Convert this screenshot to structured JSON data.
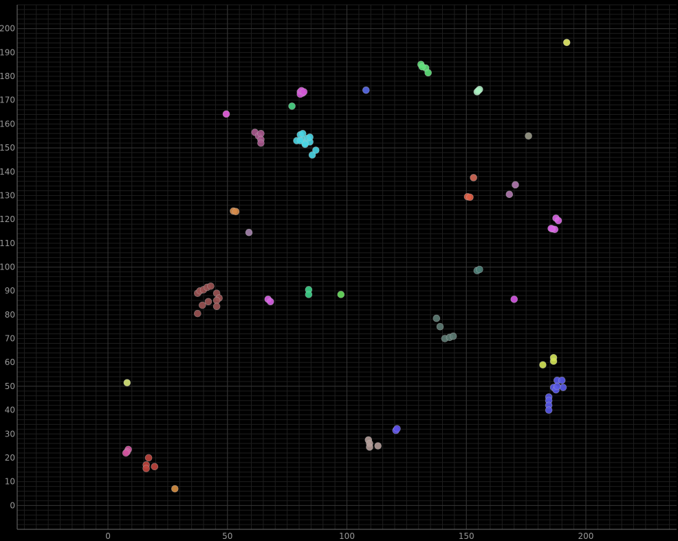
{
  "chart_data": {
    "type": "scatter",
    "title": "",
    "xlabel": "",
    "ylabel": "",
    "xlim": [
      -38,
      238
    ],
    "ylim": [
      -10,
      210
    ],
    "x_ticks": [
      0,
      50,
      100,
      150,
      200
    ],
    "y_ticks": [
      0,
      10,
      20,
      30,
      40,
      50,
      60,
      70,
      80,
      90,
      100,
      110,
      120,
      130,
      140,
      150,
      160,
      170,
      180,
      190,
      200
    ],
    "grid": true,
    "legend": "none",
    "colors": {
      "background": "#000000",
      "major_grid": "#353535",
      "minor_grid": "#1e1e1e",
      "axis": "#707070",
      "tick_text": "#9a9a9a"
    },
    "clusters": [
      {
        "color": "#e4ec6a",
        "points": [
          [
            192,
            194.2
          ]
        ]
      },
      {
        "color": "#5fe07a",
        "points": [
          [
            131,
            185
          ],
          [
            133,
            183.5
          ],
          [
            134,
            181.5
          ],
          [
            131.5,
            184
          ]
        ]
      },
      {
        "color": "#a8f0c0",
        "points": [
          [
            154.5,
            173.5
          ],
          [
            155.5,
            174.5
          ],
          [
            155,
            174
          ]
        ]
      },
      {
        "color": "#5a6aea",
        "points": [
          [
            108,
            174.2
          ]
        ]
      },
      {
        "color": "#d156d6",
        "points": [
          [
            80.5,
            173.5
          ],
          [
            81.5,
            173
          ],
          [
            80.5,
            172.5
          ],
          [
            81,
            174
          ],
          [
            82,
            173.5
          ]
        ]
      },
      {
        "color": "#4ed88a",
        "points": [
          [
            77,
            167.5
          ]
        ]
      },
      {
        "color": "#e860e0",
        "points": [
          [
            49.5,
            164.2
          ]
        ]
      },
      {
        "color": "#a85a8e",
        "points": [
          [
            61.5,
            156.5
          ],
          [
            63,
            155
          ],
          [
            64,
            156
          ],
          [
            64,
            153.5
          ],
          [
            64,
            152
          ]
        ]
      },
      {
        "color": "#4ad6e4",
        "points": [
          [
            79,
            153
          ],
          [
            80.5,
            155.5
          ],
          [
            81.5,
            153.5
          ],
          [
            81.5,
            156
          ],
          [
            82.5,
            152
          ],
          [
            83.5,
            154
          ],
          [
            84.5,
            152.5
          ],
          [
            84.5,
            154.5
          ],
          [
            87,
            149
          ],
          [
            85.5,
            147
          ],
          [
            82.5,
            151.5
          ],
          [
            80.5,
            153
          ]
        ]
      },
      {
        "color": "#9a9a88",
        "points": [
          [
            176,
            155
          ]
        ]
      },
      {
        "color": "#d46a58",
        "points": [
          [
            153,
            137.5
          ]
        ]
      },
      {
        "color": "#b27ab0",
        "points": [
          [
            170.5,
            134.5
          ],
          [
            168,
            130.5
          ]
        ]
      },
      {
        "color": "#e06048",
        "points": [
          [
            150.5,
            129.5
          ],
          [
            151.5,
            129.3
          ]
        ]
      },
      {
        "color": "#d88c4a",
        "points": [
          [
            52.5,
            123.5
          ],
          [
            53.5,
            123.3
          ]
        ]
      },
      {
        "color": "#d964e4",
        "points": [
          [
            187.5,
            120.5
          ],
          [
            188.5,
            119.5
          ],
          [
            186,
            116
          ],
          [
            187,
            115.8
          ],
          [
            185.5,
            116.2
          ]
        ]
      },
      {
        "color": "#a684ae",
        "points": [
          [
            59,
            114.5
          ]
        ]
      },
      {
        "color": "#4e8078",
        "points": [
          [
            154.5,
            98.5
          ],
          [
            155.5,
            99
          ]
        ]
      },
      {
        "color": "#9c5454",
        "points": [
          [
            37.5,
            89
          ],
          [
            38.5,
            90
          ],
          [
            40,
            90.5
          ],
          [
            41.5,
            91.5
          ],
          [
            43,
            92
          ],
          [
            45.5,
            89
          ],
          [
            46.5,
            87
          ],
          [
            45.5,
            86
          ],
          [
            42,
            85.5
          ],
          [
            39.5,
            84
          ],
          [
            45.5,
            83.5
          ],
          [
            37.5,
            80.5
          ]
        ]
      },
      {
        "color": "#d962e6",
        "points": [
          [
            67,
            86.5
          ],
          [
            68,
            85.5
          ]
        ]
      },
      {
        "color": "#3ed28a",
        "points": [
          [
            84,
            90.5
          ],
          [
            84,
            88.5
          ]
        ]
      },
      {
        "color": "#6ae060",
        "points": [
          [
            97.5,
            88.5
          ]
        ]
      },
      {
        "color": "#d656e4",
        "points": [
          [
            170,
            86.5
          ]
        ]
      },
      {
        "color": "#5e7c74",
        "points": [
          [
            137.5,
            78.5
          ],
          [
            139,
            75
          ],
          [
            141,
            70
          ],
          [
            143,
            70.5
          ],
          [
            144.5,
            71
          ]
        ]
      },
      {
        "color": "#d4e456",
        "points": [
          [
            186.5,
            62
          ],
          [
            186.5,
            60.5
          ],
          [
            182,
            59
          ]
        ]
      },
      {
        "color": "#5a5ae8",
        "points": [
          [
            188,
            52.5
          ],
          [
            190,
            52.5
          ],
          [
            190.5,
            49.5
          ],
          [
            186.5,
            49.5
          ],
          [
            187.5,
            48.5
          ],
          [
            188,
            50
          ],
          [
            184.5,
            45.5
          ],
          [
            184.5,
            44
          ],
          [
            184.5,
            42
          ],
          [
            184.5,
            40
          ]
        ]
      },
      {
        "color": "#d8e87a",
        "points": [
          [
            8,
            51.5
          ]
        ]
      },
      {
        "color": "#5e52ea",
        "points": [
          [
            120.5,
            31.5
          ],
          [
            121,
            32.2
          ]
        ]
      },
      {
        "color": "#b49c98",
        "points": [
          [
            109,
            27.5
          ],
          [
            109.5,
            26
          ],
          [
            109.5,
            24.5
          ],
          [
            113,
            25
          ]
        ]
      },
      {
        "color": "#d2549e",
        "points": [
          [
            8.5,
            23.5
          ],
          [
            8,
            22.5
          ],
          [
            7.5,
            22
          ]
        ]
      },
      {
        "color": "#c0463e",
        "points": [
          [
            17,
            20
          ],
          [
            16,
            17
          ],
          [
            16,
            15.5
          ],
          [
            19.5,
            16.3
          ]
        ]
      },
      {
        "color": "#d89044",
        "points": [
          [
            28,
            7
          ]
        ]
      }
    ]
  }
}
